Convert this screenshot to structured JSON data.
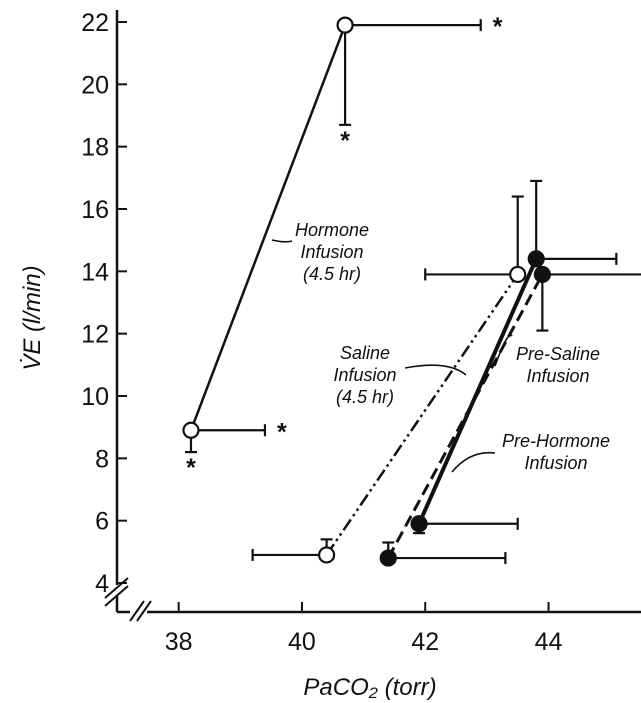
{
  "chart_data": {
    "type": "line",
    "xlabel": "PaCO₂ (torr)",
    "ylabel": "V̇E (l/min)",
    "xlim": [
      37,
      45.5
    ],
    "ylim": [
      4,
      22
    ],
    "xticks": [
      38,
      40,
      42,
      44
    ],
    "yticks": [
      4,
      6,
      8,
      10,
      12,
      14,
      16,
      18,
      20,
      22
    ],
    "grid": false,
    "series": [
      {
        "name": "Hormone Infusion (4.5 hr)",
        "line_style": "solid",
        "marker": "open",
        "points": [
          {
            "x": 38.2,
            "y": 8.9,
            "xerr_plus": 1.2,
            "yerr_minus": 0.7,
            "sig_x": "*",
            "sig_y": "*"
          },
          {
            "x": 40.7,
            "y": 21.9,
            "xerr_plus": 2.2,
            "yerr_minus": 3.2,
            "sig_x": "*",
            "sig_y": "*"
          }
        ]
      },
      {
        "name": "Saline Infusion (4.5 hr)",
        "line_style": "dash-dot-dot",
        "marker": "open",
        "points": [
          {
            "x": 40.4,
            "y": 4.9,
            "xerr_minus": 1.2,
            "yerr_plus": 0.5
          },
          {
            "x": 43.5,
            "y": 13.9,
            "xerr_minus": 1.5,
            "yerr_plus": 2.5
          }
        ]
      },
      {
        "name": "Pre-Saline Infusion",
        "line_style": "dash",
        "marker": "filled",
        "points": [
          {
            "x": 41.4,
            "y": 4.8,
            "xerr_plus": 1.9,
            "yerr_plus": 0.5
          },
          {
            "x": 43.9,
            "y": 13.9,
            "xerr_plus": 1.7,
            "yerr_minus": 1.8
          }
        ]
      },
      {
        "name": "Pre-Hormone Infusion",
        "line_style": "solid-thick",
        "marker": "filled",
        "points": [
          {
            "x": 41.9,
            "y": 5.9,
            "xerr_plus": 1.6,
            "yerr_minus": 0.3
          },
          {
            "x": 43.8,
            "y": 14.4,
            "xerr_plus": 1.3,
            "yerr_plus": 2.5
          }
        ]
      }
    ],
    "annotations": [
      {
        "lines": [
          "Hormone",
          "Infusion",
          "(4.5 hr)"
        ],
        "for": "Hormone Infusion (4.5 hr)"
      },
      {
        "lines": [
          "Saline",
          "Infusion",
          "(4.5 hr)"
        ],
        "for": "Saline Infusion (4.5 hr)"
      },
      {
        "lines": [
          "Pre-Saline",
          "Infusion"
        ],
        "for": "Pre-Saline Infusion"
      },
      {
        "lines": [
          "Pre-Hormone",
          "Infusion"
        ],
        "for": "Pre-Hormone Infusion"
      }
    ],
    "colors": {
      "ink": "#111111",
      "background": "#ffffff"
    }
  }
}
